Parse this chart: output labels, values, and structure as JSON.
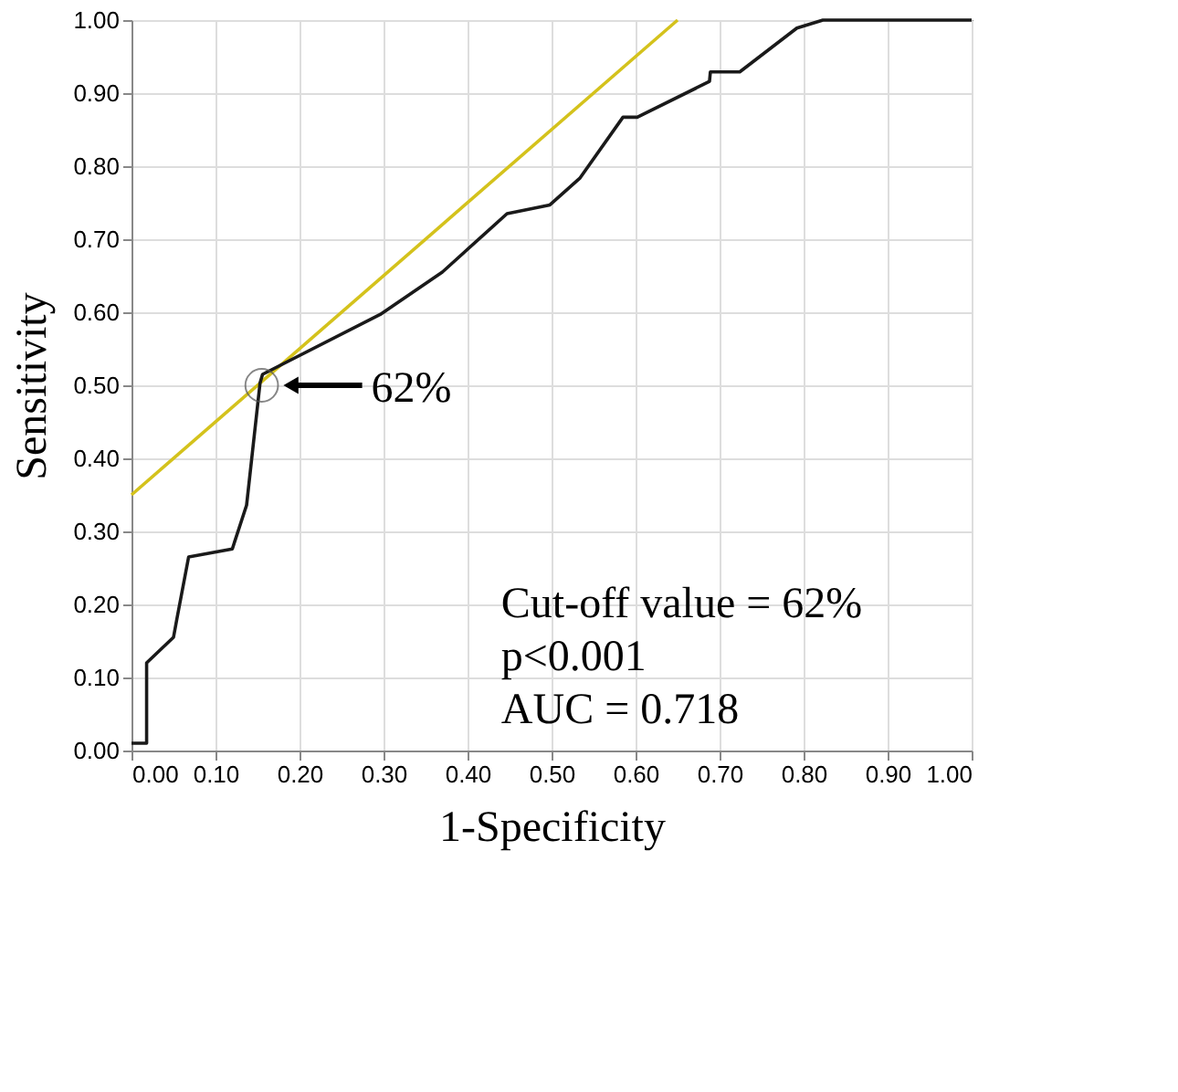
{
  "chart_data": {
    "type": "line",
    "xlabel": "1-Specificity",
    "ylabel": "Sensitivity",
    "xlim": [
      0,
      1
    ],
    "ylim": [
      0,
      1
    ],
    "xticks": [
      {
        "value": 0,
        "label": "0.00"
      },
      {
        "value": 0.1,
        "label": "0.10"
      },
      {
        "value": 0.2,
        "label": "0.20"
      },
      {
        "value": 0.3,
        "label": "0.30"
      },
      {
        "value": 0.4,
        "label": "0.40"
      },
      {
        "value": 0.5,
        "label": "0.50"
      },
      {
        "value": 0.6,
        "label": "0.60"
      },
      {
        "value": 0.7,
        "label": "0.70"
      },
      {
        "value": 0.8,
        "label": "0.80"
      },
      {
        "value": 0.9,
        "label": "0.90"
      },
      {
        "value": 1,
        "label": "1.00"
      }
    ],
    "yticks": [
      {
        "value": 0,
        "label": "0.00"
      },
      {
        "value": 0.1,
        "label": "0.10"
      },
      {
        "value": 0.2,
        "label": "0.20"
      },
      {
        "value": 0.3,
        "label": "0.30"
      },
      {
        "value": 0.4,
        "label": "0.40"
      },
      {
        "value": 0.5,
        "label": "0.50"
      },
      {
        "value": 0.6,
        "label": "0.60"
      },
      {
        "value": 0.7,
        "label": "0.70"
      },
      {
        "value": 0.8,
        "label": "0.80"
      },
      {
        "value": 0.9,
        "label": "0.90"
      },
      {
        "value": 1,
        "label": "1.00"
      }
    ],
    "grid": true,
    "marker": "none",
    "line_style": "solid",
    "series": [
      {
        "color": "#d4c21c",
        "x": [
          0,
          0.65
        ],
        "values": [
          0.35,
          1.0
        ]
      },
      {
        "color": "#1a1a1a",
        "x": [
          0,
          0.018,
          0.018,
          0.05,
          0.054,
          0.068,
          0.12,
          0.137,
          0.153,
          0.156,
          0.296,
          0.37,
          0.447,
          0.498,
          0.534,
          0.585,
          0.602,
          0.688,
          0.689,
          0.724,
          0.792,
          0.823,
          1.0
        ],
        "values": [
          0.01,
          0.01,
          0.12,
          0.155,
          0.18,
          0.265,
          0.276,
          0.336,
          0.503,
          0.515,
          0.597,
          0.655,
          0.735,
          0.747,
          0.784,
          0.867,
          0.867,
          0.916,
          0.929,
          0.929,
          0.989,
          1.0,
          1.0
        ]
      }
    ],
    "annotations": [
      {
        "text": "62%",
        "x": 0.155,
        "y": 0.5
      },
      "Cut-off value = 62%",
      "p<0.001",
      "AUC = 0.718"
    ]
  }
}
